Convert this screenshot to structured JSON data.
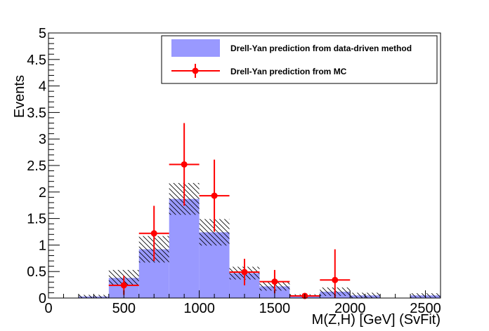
{
  "chart_data": {
    "type": "bar",
    "xlabel": "M(Z,H) [GeV] (SvFit)",
    "ylabel": "Events",
    "xlim": [
      0,
      2600
    ],
    "ylim": [
      0,
      5
    ],
    "x_ticks": [
      "0",
      "500",
      "1000",
      "1500",
      "2000",
      "2500"
    ],
    "y_ticks": [
      "0",
      "0.5",
      "1",
      "1.5",
      "2",
      "2.5",
      "3",
      "3.5",
      "4",
      "4.5",
      "5"
    ],
    "legend_position": "top-right",
    "bin_edges": [
      200,
      400,
      600,
      800,
      1000,
      1200,
      1400,
      1600,
      1800,
      2000,
      2200,
      2400,
      2600
    ],
    "series": [
      {
        "name": "Drell-Yan prediction from data-driven method",
        "style": "filled-histogram",
        "color": "#9999ff",
        "values": [
          0.03,
          0.38,
          0.92,
          1.87,
          1.24,
          0.47,
          0.22,
          0.05,
          0.12,
          0.05,
          0.0,
          0.05
        ],
        "uncertainty": [
          0.03,
          0.15,
          0.25,
          0.3,
          0.25,
          0.12,
          0.08,
          0.02,
          0.08,
          0.05,
          0.0,
          0.04
        ]
      },
      {
        "name": "Drell-Yan prediction from MC",
        "style": "points-with-errors",
        "color": "#ff0000",
        "x": [
          500,
          700,
          900,
          1100,
          1300,
          1500,
          1700,
          1900
        ],
        "x_err": [
          100,
          100,
          100,
          100,
          100,
          100,
          100,
          100
        ],
        "values": [
          0.24,
          1.22,
          2.52,
          1.93,
          0.49,
          0.31,
          0.04,
          0.34
        ],
        "y_err": [
          0.18,
          0.52,
          0.78,
          0.68,
          0.25,
          0.22,
          0.03,
          0.58
        ]
      }
    ]
  }
}
